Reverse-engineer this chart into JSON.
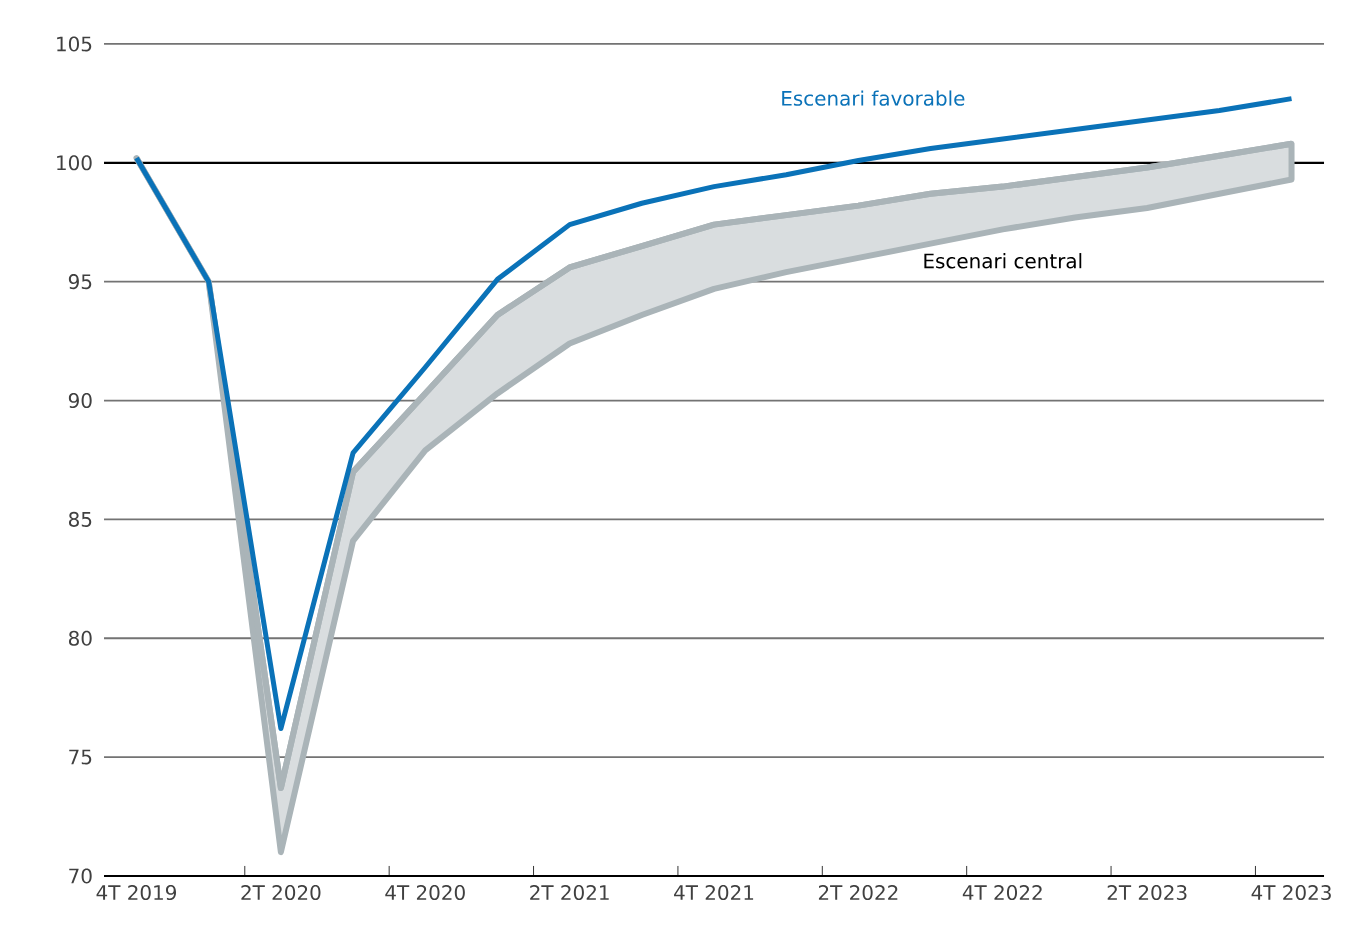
{
  "chart_data": {
    "type": "line",
    "categories": [
      "4T 2019",
      null,
      "2T 2020",
      null,
      "4T 2020",
      null,
      "2T 2021",
      null,
      "4T 2021",
      null,
      "2T 2022",
      null,
      "4T 2022",
      null,
      "2T 2023",
      null,
      "4T 2023"
    ],
    "series": [
      {
        "name": "Escenari favorable",
        "color": "#0a72b8",
        "values": [
          100.2,
          95,
          76.2,
          87.8,
          91.4,
          95.1,
          97.4,
          98.3,
          99.0,
          99.5,
          100.1,
          100.6,
          101.0,
          101.4,
          101.8,
          102.2,
          102.7
        ]
      },
      {
        "name": "Escenari central",
        "color": "#aab4b8",
        "values": [
          100.2,
          95,
          73.7,
          87.0,
          90.3,
          93.6,
          95.6,
          96.5,
          97.4,
          97.8,
          98.2,
          98.7,
          99.0,
          99.4,
          99.8,
          100.3,
          100.8
        ],
        "lower": [
          100.2,
          95,
          71.0,
          84.1,
          87.9,
          90.3,
          92.4,
          93.6,
          94.7,
          95.4,
          96.0,
          96.6,
          97.2,
          97.7,
          98.1,
          98.7,
          99.3
        ],
        "upper": [
          100.2,
          95,
          73.7,
          87.0,
          90.3,
          93.6,
          95.6,
          96.5,
          97.4,
          97.8,
          98.2,
          98.7,
          99.0,
          99.4,
          99.8,
          100.3,
          100.8
        ]
      }
    ],
    "ylim": [
      70,
      105
    ],
    "yticks": [
      70,
      75,
      80,
      85,
      90,
      95,
      100,
      105
    ],
    "grid": "y",
    "ref_lines": [
      {
        "axis": "y",
        "value": 100,
        "color": "#000000"
      }
    ],
    "marker": "none",
    "line_style": "solid"
  }
}
